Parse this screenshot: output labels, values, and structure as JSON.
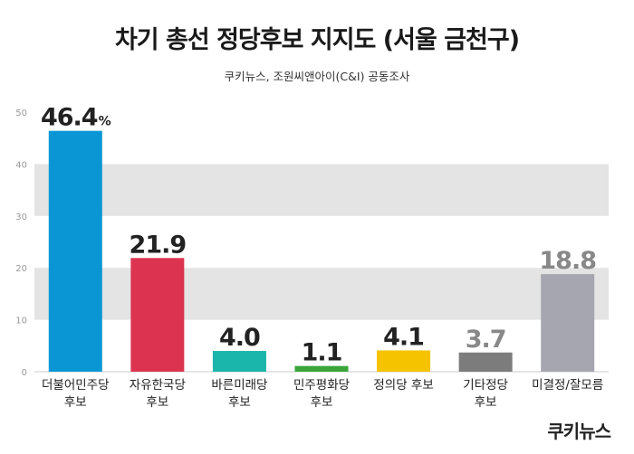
{
  "title": "차기 총선 정당후보 지지도 (서울 금천구)",
  "subtitle": "쿠키뉴스, 조원씨앤아이(C&I) 공동조사",
  "logo": "쿠키뉴스",
  "chart_data": {
    "type": "bar",
    "categories": [
      [
        "더불어민주당",
        "후보"
      ],
      [
        "자유한국당",
        "후보"
      ],
      [
        "바른미래당",
        "후보"
      ],
      [
        "민주평화당",
        "후보"
      ],
      [
        "정의당 후보"
      ],
      [
        "기타정당",
        "후보"
      ],
      [
        "미결정/잘모름"
      ]
    ],
    "values": [
      46.4,
      21.9,
      4.0,
      1.1,
      4.1,
      3.7,
      18.8
    ],
    "value_labels": [
      "46.4",
      "21.9",
      "4.0",
      "1.1",
      "4.1",
      "3.7",
      "18.8"
    ],
    "first_value_unit": "%",
    "colors": [
      "#0a96d4",
      "#dc3450",
      "#1ab5ab",
      "#3aa63a",
      "#f6c300",
      "#7c7c7c",
      "#a6a6b1"
    ],
    "label_colors": [
      "#222222",
      "#222222",
      "#222222",
      "#222222",
      "#222222",
      "#888888",
      "#888888"
    ],
    "ylim": [
      0,
      50
    ],
    "yticks": [
      0,
      10,
      20,
      30,
      40,
      50
    ],
    "grid": true,
    "band_color": "#e4e4e4"
  }
}
